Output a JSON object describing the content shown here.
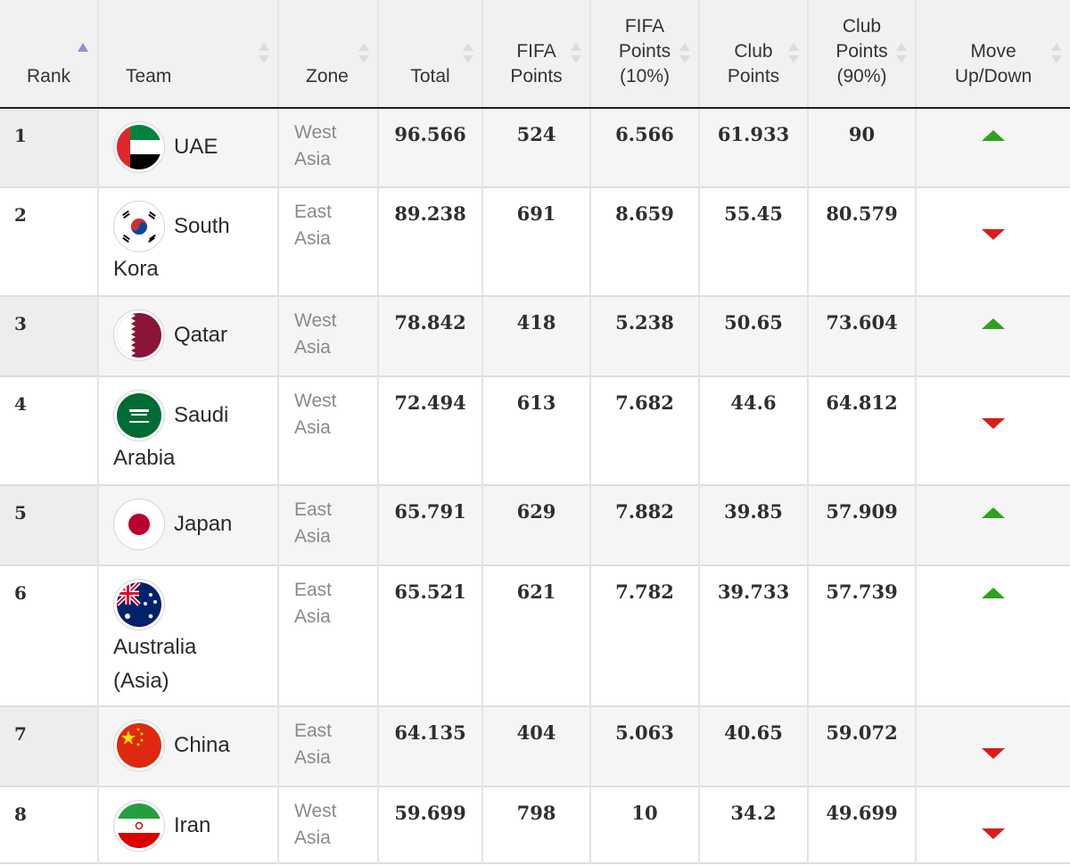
{
  "table": {
    "headers": {
      "rank": "Rank",
      "team": "Team",
      "zone": "Zone",
      "total": "Total",
      "fifa_points": [
        "FIFA",
        "Points"
      ],
      "fifa_points_pct": [
        "FIFA",
        "Points",
        "(10%)"
      ],
      "club_points": [
        "Club",
        "Points"
      ],
      "club_points_pct": [
        "Club",
        "Points",
        "(90%)"
      ],
      "move": [
        "Move",
        "Up/Down"
      ]
    },
    "colors": {
      "up_arrow": "#2ea11d",
      "down_arrow": "#d91c1c",
      "sort_active": "#8c8fe0"
    },
    "rows": [
      {
        "rank": "1",
        "team_line1": "UAE",
        "team_line2": "",
        "team_line3": "",
        "flag_icon": "uae-flag-icon",
        "zone_line1": "West",
        "zone_line2": "Asia",
        "total": "96.566",
        "fifa_points": "524",
        "fifa_points_pct": "6.566",
        "club_points": "61.933",
        "club_points_pct": "90",
        "move": "up"
      },
      {
        "rank": "2",
        "team_line1": "South",
        "team_line2": "Kora",
        "team_line3": "",
        "flag_icon": "south-korea-flag-icon",
        "zone_line1": "East",
        "zone_line2": "Asia",
        "total": "89.238",
        "fifa_points": "691",
        "fifa_points_pct": "8.659",
        "club_points": "55.45",
        "club_points_pct": "80.579",
        "move": "down"
      },
      {
        "rank": "3",
        "team_line1": "Qatar",
        "team_line2": "",
        "team_line3": "",
        "flag_icon": "qatar-flag-icon",
        "zone_line1": "West",
        "zone_line2": "Asia",
        "total": "78.842",
        "fifa_points": "418",
        "fifa_points_pct": "5.238",
        "club_points": "50.65",
        "club_points_pct": "73.604",
        "move": "up"
      },
      {
        "rank": "4",
        "team_line1": "Saudi",
        "team_line2": "Arabia",
        "team_line3": "",
        "flag_icon": "saudi-arabia-flag-icon",
        "zone_line1": "West",
        "zone_line2": "Asia",
        "total": "72.494",
        "fifa_points": "613",
        "fifa_points_pct": "7.682",
        "club_points": "44.6",
        "club_points_pct": "64.812",
        "move": "down"
      },
      {
        "rank": "5",
        "team_line1": "Japan",
        "team_line2": "",
        "team_line3": "",
        "flag_icon": "japan-flag-icon",
        "zone_line1": "East",
        "zone_line2": "Asia",
        "total": "65.791",
        "fifa_points": "629",
        "fifa_points_pct": "7.882",
        "club_points": "39.85",
        "club_points_pct": "57.909",
        "move": "up"
      },
      {
        "rank": "6",
        "team_line1": "",
        "team_line2": "Australia",
        "team_line3": "(Asia)",
        "flag_icon": "australia-flag-icon",
        "zone_line1": "East",
        "zone_line2": "Asia",
        "total": "65.521",
        "fifa_points": "621",
        "fifa_points_pct": "7.782",
        "club_points": "39.733",
        "club_points_pct": "57.739",
        "move": "up"
      },
      {
        "rank": "7",
        "team_line1": "China",
        "team_line2": "",
        "team_line3": "",
        "flag_icon": "china-flag-icon",
        "zone_line1": "East",
        "zone_line2": "Asia",
        "total": "64.135",
        "fifa_points": "404",
        "fifa_points_pct": "5.063",
        "club_points": "40.65",
        "club_points_pct": "59.072",
        "move": "down"
      },
      {
        "rank": "8",
        "team_line1": "Iran",
        "team_line2": "",
        "team_line3": "",
        "flag_icon": "iran-flag-icon",
        "zone_line1": "West",
        "zone_line2": "Asia",
        "total": "59.699",
        "fifa_points": "798",
        "fifa_points_pct": "10",
        "club_points": "34.2",
        "club_points_pct": "49.699",
        "move": "down"
      }
    ]
  }
}
